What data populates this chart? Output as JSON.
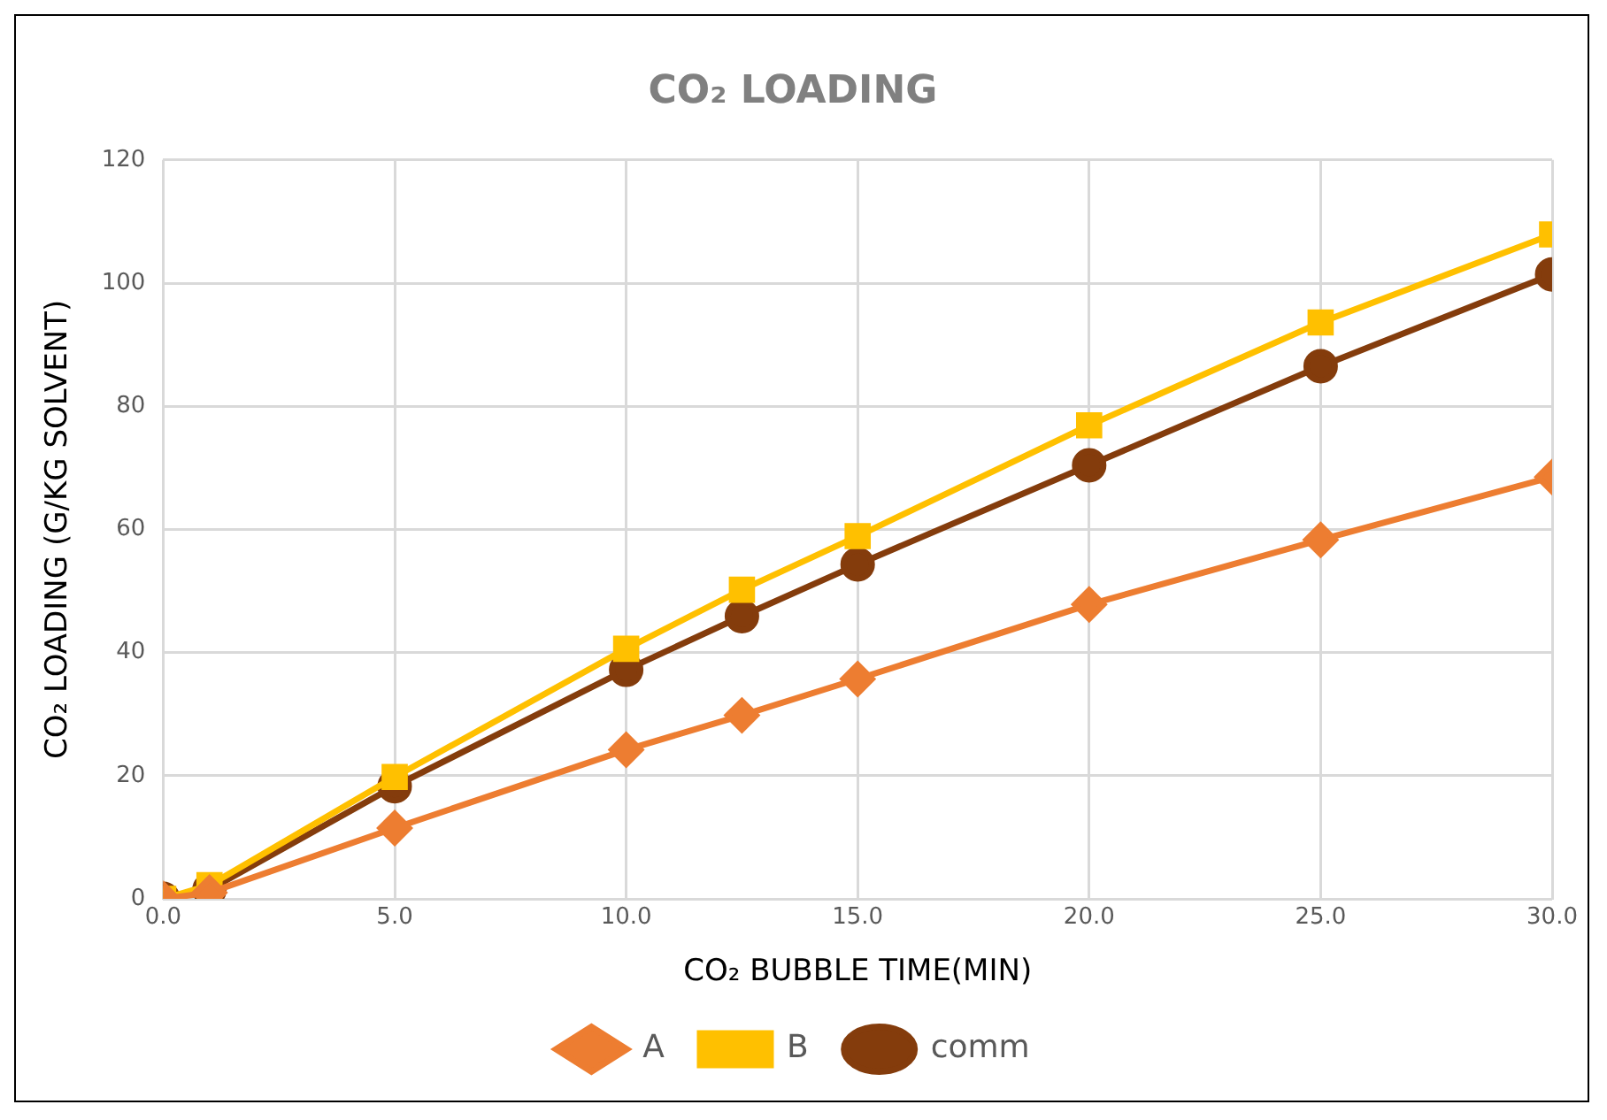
{
  "chart_data": {
    "type": "line",
    "title": "CO₂ LOADING",
    "xlabel": "CO₂ BUBBLE TIME(MIN)",
    "ylabel": "CO₂ LOADING (G/KG SOLVENT)",
    "x": [
      0,
      1,
      5,
      10,
      12.5,
      15,
      20,
      25,
      30
    ],
    "series": [
      {
        "name": "A",
        "color": "#ed7d31",
        "marker": "diamond",
        "values": [
          0,
          1,
          11.5,
          24.2,
          29.8,
          35.7,
          47.8,
          58.3,
          68.5
        ]
      },
      {
        "name": "B",
        "color": "#ffc000",
        "marker": "square",
        "values": [
          0,
          2.2,
          19.8,
          40.6,
          50.2,
          58.9,
          76.9,
          93.6,
          107.9
        ]
      },
      {
        "name": "comm",
        "color": "#843c0c",
        "marker": "circle",
        "values": [
          0,
          1.5,
          18.3,
          37.2,
          45.9,
          54.3,
          70.4,
          86.5,
          101.4
        ]
      }
    ],
    "xlim": [
      0,
      30
    ],
    "xticks": [
      {
        "value": 0,
        "label": "0.0"
      },
      {
        "value": 5,
        "label": "5.0"
      },
      {
        "value": 10,
        "label": "10.0"
      },
      {
        "value": 15,
        "label": "15.0"
      },
      {
        "value": 20,
        "label": "20.0"
      },
      {
        "value": 25,
        "label": "25.0"
      },
      {
        "value": 30,
        "label": "30.0"
      }
    ],
    "ylim": [
      0,
      120
    ],
    "yticks": [
      0,
      20,
      40,
      60,
      80,
      100,
      120
    ],
    "grid": true,
    "legend": "bottom",
    "line_style": "solid"
  }
}
